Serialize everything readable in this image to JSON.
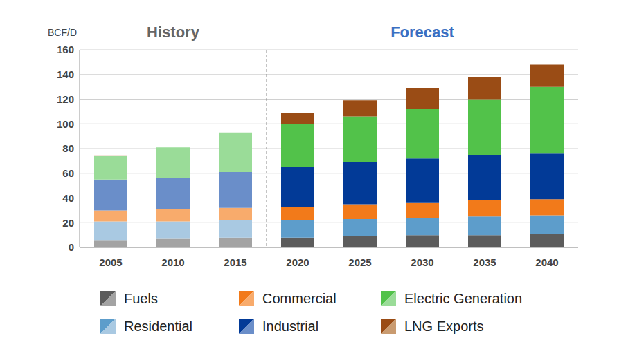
{
  "chart_data": {
    "type": "bar",
    "stacked": true,
    "grid": true,
    "legend": "bottom",
    "y_label": "BCF/D",
    "categories": [
      "2005",
      "2010",
      "2015",
      "2020",
      "2025",
      "2030",
      "2035",
      "2040"
    ],
    "ylim": [
      0,
      160
    ],
    "yticks": [
      0,
      20,
      40,
      60,
      80,
      100,
      120,
      140,
      160
    ],
    "annotations": [
      {
        "text": "History",
        "x": [
          "2005",
          "2015"
        ]
      },
      {
        "text": "Forecast",
        "x": [
          "2020",
          "2040"
        ]
      }
    ],
    "series": [
      {
        "name": "Fuels",
        "values": [
          6,
          7,
          8,
          8,
          9,
          10,
          10,
          11
        ],
        "colors": [
          "#a3a3a3",
          "#a3a3a3",
          "#a3a3a3",
          "#5c5c5c",
          "#5c5c5c",
          "#5c5c5c",
          "#5c5c5c",
          "#5c5c5c"
        ]
      },
      {
        "name": "Residential",
        "values": [
          15,
          14,
          14,
          14,
          14,
          14,
          15,
          15
        ],
        "colors": [
          "#a9c9e2",
          "#a9c9e2",
          "#a9c9e2",
          "#5d9dcb",
          "#5d9dcb",
          "#5d9dcb",
          "#5d9dcb",
          "#5d9dcb"
        ]
      },
      {
        "name": "Commercial",
        "values": [
          9,
          10,
          10,
          11,
          12,
          12,
          13,
          13
        ],
        "colors": [
          "#f8ab6c",
          "#f8ab6c",
          "#f8ab6c",
          "#f27a1a",
          "#f27a1a",
          "#f27a1a",
          "#f27a1a",
          "#f27a1a"
        ]
      },
      {
        "name": "Industrial",
        "values": [
          25,
          25,
          29,
          32,
          34,
          36,
          37,
          37
        ],
        "colors": [
          "#6a8ec9",
          "#6a8ec9",
          "#6a8ec9",
          "#023a97",
          "#023a97",
          "#023a97",
          "#023a97",
          "#023a97"
        ]
      },
      {
        "name": "Electric Generation",
        "values": [
          19,
          25,
          32,
          35,
          37,
          40,
          45,
          54
        ],
        "colors": [
          "#9adc98",
          "#9adc98",
          "#9adc98",
          "#52c24a",
          "#52c24a",
          "#52c24a",
          "#52c24a",
          "#52c24a"
        ]
      },
      {
        "name": "LNG Exports",
        "values": [
          0.5,
          0,
          0,
          9,
          13,
          17,
          18,
          18
        ],
        "colors": [
          "#c99b70",
          "#c99b70",
          "#c99b70",
          "#9a4c15",
          "#9a4c15",
          "#9a4c15",
          "#9a4c15",
          "#9a4c15"
        ]
      }
    ]
  }
}
